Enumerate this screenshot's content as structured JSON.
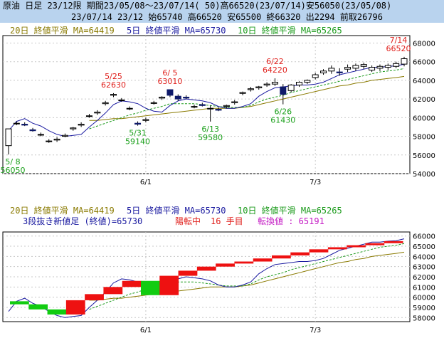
{
  "header": {
    "line1": "原油 日足 23/12限 期間23/05/08〜23/07/14( 50)高66520(23/07/14)安56050(23/05/08)",
    "line2": "23/07/14 23/12 始65740 高66520 安65500 終66320 出2294 前取26796"
  },
  "colors": {
    "header_bg": "#b9d3ee",
    "ma20": "#8a7a00",
    "ma5": "#1a1aa0",
    "ma10": "#1a9a1a",
    "up_brick": "#ee1111",
    "down_brick": "#11cc11",
    "candle_down": "#0f1a6a",
    "grid": "#c8c8c8"
  },
  "chart_data": [
    {
      "type": "candlestick",
      "legend": [
        {
          "text": "20日 終値平滑 MA=64419",
          "color": "#8a7a00"
        },
        {
          "text": "5日 終値平滑 MA=65730",
          "color": "#1a1aa0"
        },
        {
          "text": "10日 終値平滑 MA=65265",
          "color": "#1a9a1a"
        }
      ],
      "y_ticks": [
        54000,
        56000,
        58000,
        60000,
        62000,
        64000,
        66000,
        68000
      ],
      "ylim": [
        54000,
        68800
      ],
      "x_ticks": [
        {
          "label": "6/1",
          "index": 17
        },
        {
          "label": "7/3",
          "index": 38
        }
      ],
      "n_days": 50,
      "candles_ohlc": [
        [
          57000,
          58800,
          56050,
          58800
        ],
        [
          59400,
          59600,
          59200,
          59400
        ],
        [
          59300,
          59500,
          59100,
          59200
        ],
        [
          58700,
          58900,
          58500,
          58600
        ],
        [
          58200,
          58400,
          58000,
          58200
        ],
        [
          57500,
          57700,
          57300,
          57500
        ],
        [
          57600,
          57900,
          57400,
          57700
        ],
        [
          58000,
          58300,
          57900,
          58100
        ],
        [
          58800,
          59000,
          58600,
          58900
        ],
        [
          59200,
          59500,
          59000,
          59300
        ],
        [
          60200,
          60400,
          60000,
          60200
        ],
        [
          60500,
          60800,
          60300,
          60600
        ],
        [
          61500,
          61800,
          61300,
          61600
        ],
        [
          62400,
          62630,
          62200,
          62500
        ],
        [
          61900,
          62100,
          61700,
          61900
        ],
        [
          61000,
          61200,
          60800,
          61000
        ],
        [
          59400,
          59600,
          59140,
          59300
        ],
        [
          59700,
          60000,
          59500,
          59800
        ],
        [
          61600,
          61800,
          61400,
          61600
        ],
        [
          62100,
          62300,
          61900,
          62200
        ],
        [
          63000,
          63010,
          62200,
          62400
        ],
        [
          62300,
          62500,
          61800,
          62000
        ],
        [
          62200,
          62400,
          62000,
          62100
        ],
        [
          61200,
          61400,
          61000,
          61200
        ],
        [
          61400,
          61600,
          61200,
          61300
        ],
        [
          61000,
          61300,
          59580,
          61000
        ],
        [
          60900,
          61100,
          60700,
          60800
        ],
        [
          61200,
          61400,
          61000,
          61300
        ],
        [
          61600,
          61900,
          61400,
          61700
        ],
        [
          62600,
          62800,
          62400,
          62700
        ],
        [
          63000,
          63300,
          62800,
          63100
        ],
        [
          63200,
          63400,
          63000,
          63300
        ],
        [
          63500,
          63800,
          63300,
          63600
        ],
        [
          63600,
          64220,
          63400,
          63800
        ],
        [
          63300,
          63600,
          61430,
          62500
        ],
        [
          62900,
          63600,
          62700,
          63500
        ],
        [
          63500,
          63900,
          63300,
          63800
        ],
        [
          63800,
          64100,
          63600,
          64000
        ],
        [
          64300,
          64800,
          64100,
          64600
        ],
        [
          64800,
          65200,
          64600,
          65000
        ],
        [
          65000,
          65600,
          64700,
          65300
        ],
        [
          64900,
          65300,
          64500,
          64800
        ],
        [
          65200,
          65700,
          64900,
          65400
        ],
        [
          65300,
          65800,
          65000,
          65600
        ],
        [
          65500,
          65900,
          65200,
          65700
        ],
        [
          65100,
          65600,
          64900,
          65400
        ],
        [
          65300,
          65700,
          65000,
          65500
        ],
        [
          65400,
          65800,
          65100,
          65600
        ],
        [
          65500,
          66000,
          65300,
          65800
        ],
        [
          65740,
          66520,
          65500,
          66320
        ]
      ],
      "ma5": [
        58600,
        59600,
        59900,
        59400,
        59100,
        58600,
        58200,
        58000,
        58100,
        58200,
        59000,
        59700,
        60500,
        61400,
        61800,
        61700,
        61500,
        61000,
        60700,
        60600,
        61300,
        61800,
        62000,
        61900,
        61800,
        61600,
        61200,
        61000,
        61000,
        61200,
        61500,
        62300,
        62800,
        63200,
        63300,
        63400,
        63500,
        63500,
        63600,
        63800,
        64200,
        64600,
        64800,
        65000,
        65200,
        65400,
        65400,
        65500,
        65550,
        65730
      ],
      "ma10": [
        null,
        null,
        null,
        null,
        null,
        null,
        null,
        null,
        null,
        null,
        58800,
        59100,
        59400,
        59700,
        60000,
        60300,
        60500,
        60800,
        61000,
        61200,
        61500,
        61500,
        61500,
        61500,
        61400,
        61300,
        61200,
        61100,
        61100,
        61100,
        61300,
        61700,
        62000,
        62200,
        62400,
        62700,
        62900,
        63100,
        63300,
        63500,
        63700,
        63900,
        64100,
        64300,
        64500,
        64700,
        64900,
        65000,
        65100,
        65265
      ],
      "ma20": [
        null,
        null,
        null,
        null,
        null,
        null,
        null,
        null,
        null,
        null,
        59700,
        59700,
        59800,
        59900,
        59900,
        60000,
        60100,
        60200,
        60300,
        60400,
        60500,
        60600,
        60700,
        60800,
        60900,
        61000,
        61000,
        61000,
        61000,
        61100,
        61200,
        61400,
        61600,
        61800,
        62000,
        62200,
        62400,
        62600,
        62800,
        63000,
        63200,
        63400,
        63500,
        63700,
        63800,
        64000,
        64100,
        64200,
        64300,
        64419
      ],
      "annotations": [
        {
          "index": 0,
          "lines": [
            "5/ 8",
            "56050"
          ],
          "color": "green",
          "pos": "below"
        },
        {
          "index": 13,
          "lines": [
            "5/25",
            "62630"
          ],
          "color": "red",
          "pos": "above"
        },
        {
          "index": 16,
          "lines": [
            "5/31",
            "59140"
          ],
          "color": "green",
          "pos": "below"
        },
        {
          "index": 20,
          "lines": [
            "6/ 5",
            "63010"
          ],
          "color": "red",
          "pos": "above"
        },
        {
          "index": 25,
          "lines": [
            "6/13",
            "59580"
          ],
          "color": "green",
          "pos": "below"
        },
        {
          "index": 33,
          "lines": [
            "6/22",
            "64220"
          ],
          "color": "red",
          "pos": "above"
        },
        {
          "index": 34,
          "lines": [
            "6/26",
            "61430"
          ],
          "color": "green",
          "pos": "below"
        },
        {
          "index": 49,
          "lines": [
            "7/14",
            "66520"
          ],
          "color": "red",
          "pos": "above"
        }
      ]
    },
    {
      "type": "three-line-break",
      "legend": [
        {
          "text": "20日 終値平滑 MA=64419",
          "color": "#8a7a00"
        },
        {
          "text": "5日 終値平滑 MA=65730",
          "color": "#1a1aa0"
        },
        {
          "text": "10日 終値平滑 MA=65265",
          "color": "#1a9a1a"
        }
      ],
      "info": {
        "label": "3段抜き新値足 (終値)=65730",
        "status": "陽転中",
        "count": "16 手目",
        "reversal": "転換値 : 65191"
      },
      "y_ticks": [
        58000,
        59000,
        60000,
        61000,
        62000,
        63000,
        64000,
        65000,
        66000
      ],
      "ylim": [
        57600,
        66400
      ],
      "x_ticks": [
        {
          "label": "6/1"
        },
        {
          "label": "7/3"
        }
      ],
      "bricks": [
        {
          "dir": "down",
          "open": 59600,
          "close": 59300
        },
        {
          "dir": "down",
          "open": 59300,
          "close": 58800
        },
        {
          "dir": "down",
          "open": 58800,
          "close": 58300
        },
        {
          "dir": "up",
          "open": 58300,
          "close": 59700
        },
        {
          "dir": "up",
          "open": 59700,
          "close": 60300
        },
        {
          "dir": "up",
          "open": 60300,
          "close": 61000
        },
        {
          "dir": "up",
          "open": 61000,
          "close": 61600
        },
        {
          "dir": "down",
          "open": 61600,
          "close": 60200
        },
        {
          "dir": "up",
          "open": 60200,
          "close": 62100
        },
        {
          "dir": "up",
          "open": 62100,
          "close": 62600
        },
        {
          "dir": "up",
          "open": 62600,
          "close": 63000
        },
        {
          "dir": "up",
          "open": 63000,
          "close": 63300
        },
        {
          "dir": "up",
          "open": 63300,
          "close": 63500
        },
        {
          "dir": "up",
          "open": 63500,
          "close": 63800
        },
        {
          "dir": "up",
          "open": 63800,
          "close": 64100
        },
        {
          "dir": "up",
          "open": 64100,
          "close": 64400
        },
        {
          "dir": "up",
          "open": 64400,
          "close": 64700
        },
        {
          "dir": "up",
          "open": 64700,
          "close": 64900
        },
        {
          "dir": "up",
          "open": 64900,
          "close": 65100
        },
        {
          "dir": "up",
          "open": 65100,
          "close": 65300
        },
        {
          "dir": "up",
          "open": 65300,
          "close": 65500
        }
      ]
    }
  ]
}
